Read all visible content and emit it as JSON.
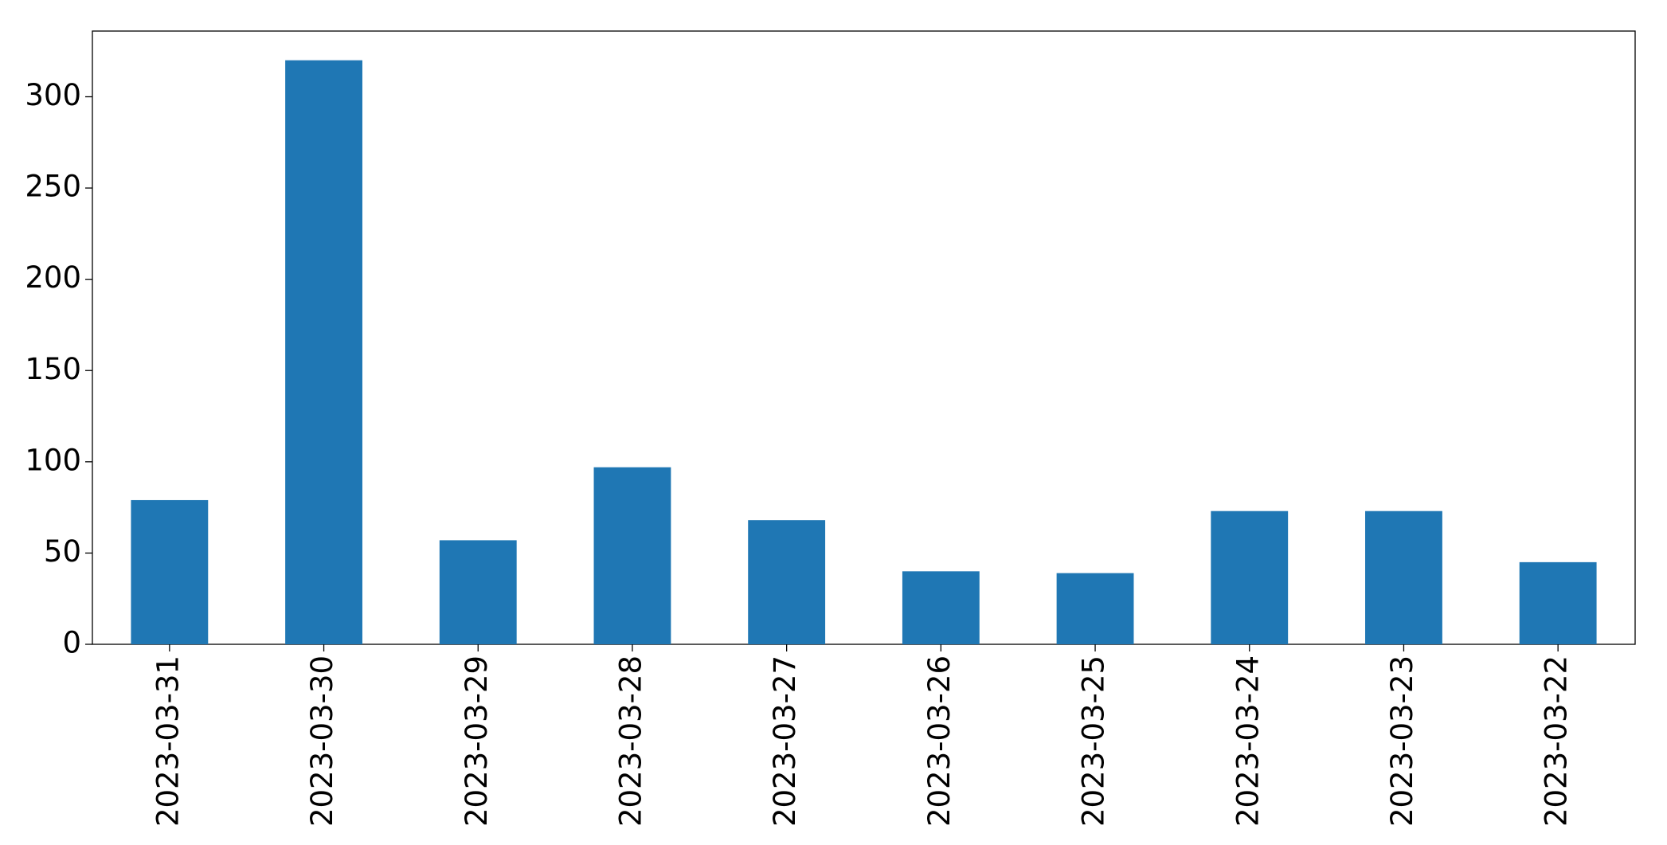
{
  "chart_data": {
    "type": "bar",
    "categories": [
      "2023-03-31",
      "2023-03-30",
      "2023-03-29",
      "2023-03-28",
      "2023-03-27",
      "2023-03-26",
      "2023-03-25",
      "2023-03-24",
      "2023-03-23",
      "2023-03-22"
    ],
    "values": [
      79,
      320,
      57,
      97,
      68,
      40,
      39,
      73,
      73,
      45
    ],
    "color": "#1f77b4",
    "ylim": [
      0,
      336
    ],
    "yticks": [
      0,
      50,
      100,
      150,
      200,
      250,
      300
    ],
    "grid": false
  }
}
